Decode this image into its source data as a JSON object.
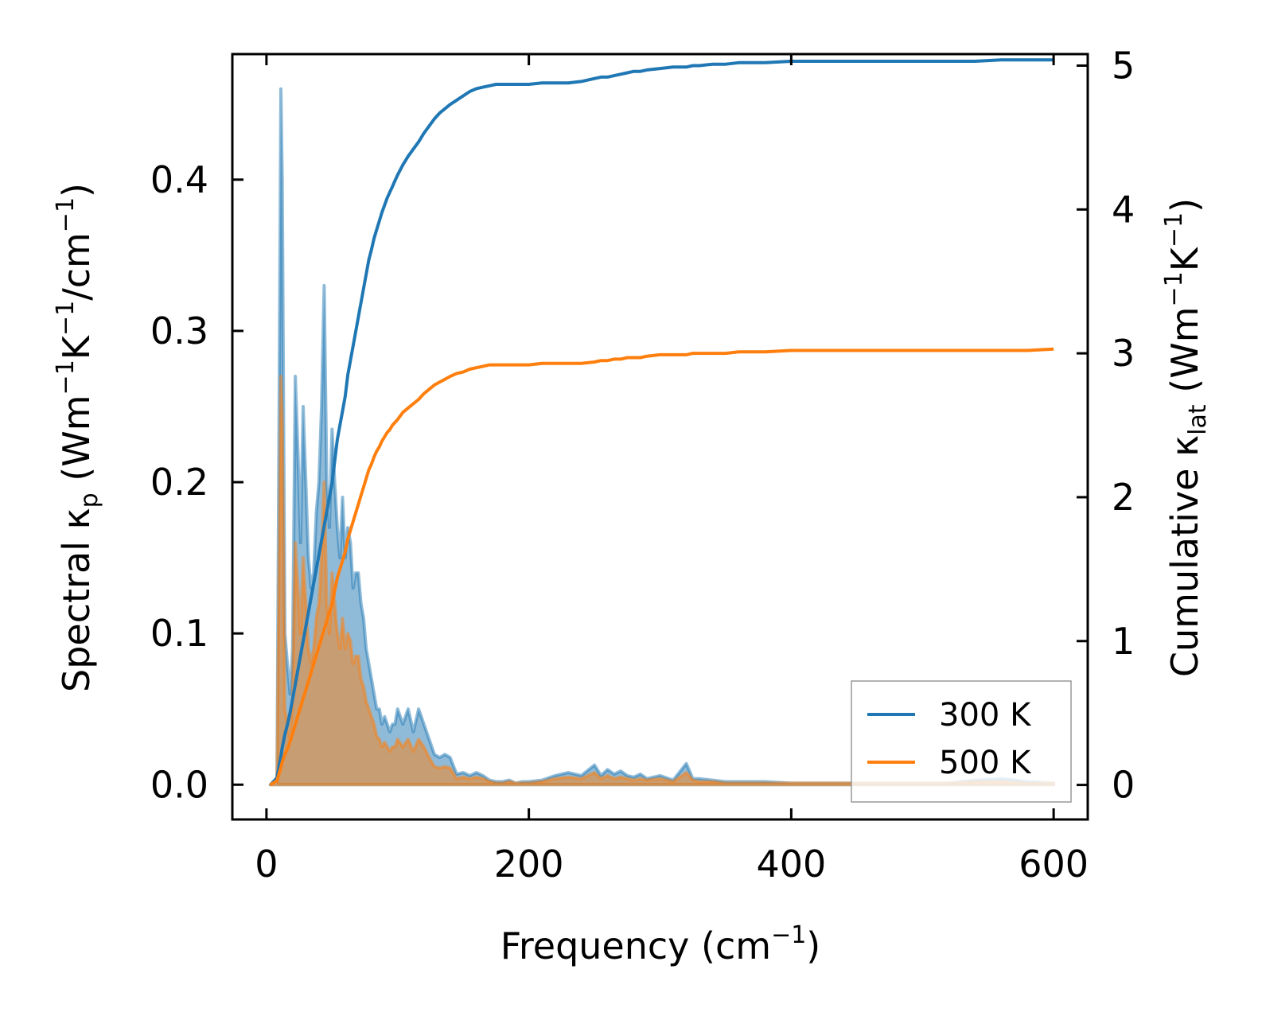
{
  "chart_data": {
    "type": "line",
    "title": "",
    "xlabel": {
      "main": "Frequency (cm",
      "sup": "−1",
      "end": ")"
    },
    "ylabel_left": {
      "a": "Spectral κ",
      "sub": "p",
      "b": " (Wm",
      "sup1": "−1",
      "c": "K",
      "sup2": "−1",
      "d": "/cm",
      "sup3": "−1",
      "e": ")"
    },
    "ylabel_right": {
      "a": "Cumulative κ",
      "sub": "lat",
      "b": " (Wm",
      "sup1": "−1",
      "c": "K",
      "sup2": "−1",
      "d": ")"
    },
    "xlim": [
      -26,
      626
    ],
    "ylim_left": [
      -0.023,
      0.483
    ],
    "ylim_right": [
      -0.24,
      5.08
    ],
    "x_ticks": [
      0,
      200,
      400,
      600
    ],
    "x_tick_labels": [
      "0",
      "200",
      "400",
      "600"
    ],
    "y_left_ticks": [
      0.0,
      0.1,
      0.2,
      0.3,
      0.4
    ],
    "y_left_tick_labels": [
      "0.0",
      "0.1",
      "0.2",
      "0.3",
      "0.4"
    ],
    "y_right_ticks": [
      0,
      1,
      2,
      3,
      4,
      5
    ],
    "y_right_tick_labels": [
      "0",
      "1",
      "2",
      "3",
      "4",
      "5"
    ],
    "colors": {
      "300K": "#1f77b4",
      "500K": "#ff7f0e",
      "fill_300K": "#1f77b4",
      "fill_500K": "#ff7f0e"
    },
    "legend": {
      "position": "lower-right",
      "entries": [
        "300 K",
        "500 K"
      ]
    },
    "spectral_x": [
      3,
      8,
      11,
      12,
      14,
      16,
      18,
      20,
      22,
      24,
      26,
      28,
      30,
      32,
      34,
      36,
      38,
      40,
      42,
      44,
      46,
      48,
      50,
      52,
      54,
      56,
      58,
      60,
      62,
      64,
      66,
      68,
      70,
      72,
      74,
      76,
      78,
      80,
      82,
      84,
      86,
      88,
      90,
      92,
      94,
      96,
      98,
      100,
      104,
      108,
      112,
      116,
      120,
      124,
      128,
      132,
      136,
      140,
      145,
      150,
      155,
      160,
      165,
      170,
      175,
      180,
      185,
      190,
      195,
      200,
      210,
      220,
      230,
      240,
      250,
      255,
      260,
      265,
      270,
      275,
      280,
      285,
      290,
      300,
      310,
      320,
      325,
      330,
      340,
      350,
      360,
      370,
      380,
      400,
      420,
      440,
      460,
      480,
      500,
      520,
      540,
      560,
      580,
      600
    ],
    "series": [
      {
        "name": "300 K",
        "spectral": [
          0,
          0,
          0.46,
          0.4,
          0.1,
          0.08,
          0.06,
          0.09,
          0.27,
          0.22,
          0.16,
          0.25,
          0.2,
          0.15,
          0.13,
          0.14,
          0.18,
          0.2,
          0.25,
          0.33,
          0.2,
          0.17,
          0.235,
          0.2,
          0.17,
          0.15,
          0.19,
          0.15,
          0.17,
          0.16,
          0.13,
          0.14,
          0.14,
          0.12,
          0.11,
          0.09,
          0.08,
          0.07,
          0.06,
          0.05,
          0.05,
          0.04,
          0.045,
          0.04,
          0.035,
          0.04,
          0.04,
          0.05,
          0.04,
          0.05,
          0.035,
          0.05,
          0.04,
          0.03,
          0.02,
          0.018,
          0.02,
          0.018,
          0.007,
          0.008,
          0.006,
          0.008,
          0.006,
          0.003,
          0.002,
          0.002,
          0.003,
          0.001,
          0.002,
          0.002,
          0.003,
          0.006,
          0.008,
          0.006,
          0.013,
          0.006,
          0.01,
          0.007,
          0.009,
          0.006,
          0.005,
          0.007,
          0.004,
          0.006,
          0.003,
          0.014,
          0.004,
          0.004,
          0.003,
          0.002,
          0.002,
          0.002,
          0.002,
          0.001,
          0.001,
          0.001,
          0.001,
          0.001,
          0.001,
          0.001,
          0.003,
          0.004,
          0.002,
          0.001
        ],
        "cumulative": [
          0,
          0.05,
          0.2,
          0.26,
          0.35,
          0.42,
          0.5,
          0.6,
          0.7,
          0.8,
          0.9,
          1,
          1.1,
          1.2,
          1.3,
          1.4,
          1.5,
          1.6,
          1.7,
          1.8,
          1.9,
          2,
          2.1,
          2.25,
          2.4,
          2.5,
          2.6,
          2.7,
          2.85,
          2.95,
          3.05,
          3.15,
          3.25,
          3.35,
          3.45,
          3.55,
          3.65,
          3.72,
          3.8,
          3.86,
          3.92,
          3.98,
          4.03,
          4.08,
          4.12,
          4.16,
          4.2,
          4.24,
          4.31,
          4.37,
          4.42,
          4.47,
          4.53,
          4.58,
          4.63,
          4.67,
          4.7,
          4.73,
          4.76,
          4.79,
          4.82,
          4.84,
          4.85,
          4.86,
          4.87,
          4.87,
          4.87,
          4.87,
          4.87,
          4.87,
          4.88,
          4.88,
          4.88,
          4.89,
          4.91,
          4.92,
          4.92,
          4.93,
          4.94,
          4.95,
          4.96,
          4.96,
          4.97,
          4.98,
          4.99,
          4.99,
          5.0,
          5.0,
          5.01,
          5.01,
          5.02,
          5.02,
          5.02,
          5.03,
          5.03,
          5.03,
          5.03,
          5.03,
          5.03,
          5.03,
          5.03,
          5.04,
          5.04,
          5.04
        ]
      },
      {
        "name": "500 K",
        "spectral": [
          0,
          0,
          0.27,
          0.24,
          0.05,
          0.04,
          0.03,
          0.06,
          0.16,
          0.13,
          0.1,
          0.15,
          0.12,
          0.09,
          0.08,
          0.09,
          0.11,
          0.12,
          0.15,
          0.2,
          0.12,
          0.1,
          0.14,
          0.12,
          0.1,
          0.09,
          0.11,
          0.09,
          0.1,
          0.095,
          0.08,
          0.085,
          0.085,
          0.07,
          0.065,
          0.055,
          0.05,
          0.045,
          0.04,
          0.032,
          0.03,
          0.025,
          0.028,
          0.025,
          0.022,
          0.025,
          0.025,
          0.03,
          0.025,
          0.03,
          0.022,
          0.03,
          0.025,
          0.018,
          0.012,
          0.011,
          0.012,
          0.011,
          0.004,
          0.005,
          0.004,
          0.005,
          0.004,
          0.002,
          0.001,
          0.001,
          0.002,
          0.001,
          0.001,
          0.001,
          0.002,
          0.004,
          0.005,
          0.004,
          0.008,
          0.004,
          0.006,
          0.004,
          0.005,
          0.004,
          0.003,
          0.004,
          0.003,
          0.004,
          0.002,
          0.008,
          0.003,
          0.002,
          0.002,
          0.001,
          0.001,
          0.001,
          0.001,
          0.001,
          0.001,
          0.001,
          0.001,
          0.001,
          0.001,
          0.001,
          0.002,
          0.002,
          0.001,
          0.001
        ],
        "cumulative": [
          0,
          0.03,
          0.12,
          0.16,
          0.21,
          0.25,
          0.3,
          0.36,
          0.42,
          0.48,
          0.54,
          0.6,
          0.66,
          0.72,
          0.78,
          0.84,
          0.9,
          0.96,
          1.02,
          1.08,
          1.14,
          1.2,
          1.26,
          1.35,
          1.44,
          1.5,
          1.56,
          1.62,
          1.71,
          1.77,
          1.83,
          1.89,
          1.95,
          2.01,
          2.07,
          2.13,
          2.19,
          2.23,
          2.28,
          2.32,
          2.35,
          2.39,
          2.42,
          2.45,
          2.47,
          2.5,
          2.52,
          2.54,
          2.59,
          2.62,
          2.65,
          2.68,
          2.72,
          2.75,
          2.78,
          2.8,
          2.82,
          2.84,
          2.86,
          2.87,
          2.89,
          2.9,
          2.91,
          2.92,
          2.92,
          2.92,
          2.92,
          2.92,
          2.92,
          2.92,
          2.93,
          2.93,
          2.93,
          2.93,
          2.94,
          2.95,
          2.95,
          2.96,
          2.96,
          2.97,
          2.97,
          2.97,
          2.98,
          2.99,
          2.99,
          2.99,
          3.0,
          3.0,
          3.0,
          3.0,
          3.01,
          3.01,
          3.01,
          3.02,
          3.02,
          3.02,
          3.02,
          3.02,
          3.02,
          3.02,
          3.02,
          3.02,
          3.02,
          3.03
        ]
      }
    ]
  }
}
